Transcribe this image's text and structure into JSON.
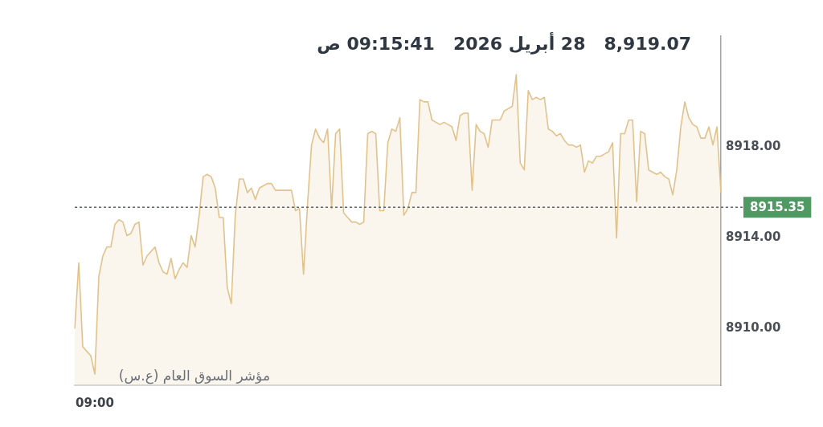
{
  "chart_data": {
    "type": "area",
    "title": "8,919.07   28 أبريل 2026   09:15:41 ص",
    "annotations": [
      "مؤشر السوق العام (ع.س)"
    ],
    "categories": [
      null,
      null,
      null,
      null,
      null,
      "09:00",
      null,
      null,
      null,
      null,
      null,
      null,
      null,
      null,
      null,
      null,
      null,
      null,
      null,
      null,
      null,
      null,
      null,
      null,
      null,
      null,
      null,
      null,
      null,
      null,
      null,
      null,
      null,
      null,
      null,
      null,
      null,
      null,
      null,
      null,
      null,
      null,
      null,
      null,
      null,
      null,
      null,
      null,
      null,
      null,
      null,
      null,
      null,
      null,
      null,
      null,
      null,
      null,
      null,
      null,
      null,
      null,
      null,
      null,
      null,
      null,
      null,
      null,
      null,
      null,
      null,
      null,
      null,
      null,
      null,
      null,
      null,
      null,
      null,
      null,
      null,
      null,
      null,
      null,
      null,
      null,
      null,
      null,
      null,
      null,
      null,
      null,
      null,
      null,
      null,
      null,
      null,
      null,
      null,
      null,
      null,
      null,
      null,
      null,
      null,
      null,
      null,
      null,
      null,
      null,
      null,
      null,
      null,
      null,
      null,
      null,
      null,
      null,
      null,
      null,
      null,
      null,
      null,
      null,
      null,
      null,
      null,
      null,
      null,
      null,
      null,
      null,
      null,
      null,
      null,
      null,
      null,
      null,
      null,
      null,
      null,
      null,
      null,
      null,
      null,
      null,
      null,
      null,
      null,
      null,
      null,
      null,
      null,
      null,
      null,
      null,
      null,
      null,
      null,
      null,
      null,
      null
    ],
    "values": [
      8910.0,
      8912.9,
      8909.2,
      8909.0,
      8908.8,
      8908.0,
      8912.3,
      8913.2,
      8913.6,
      8913.6,
      8914.6,
      8914.8,
      8914.7,
      8914.1,
      8914.2,
      8914.6,
      8914.7,
      8912.8,
      8913.2,
      8913.4,
      8913.6,
      8912.9,
      8912.5,
      8912.4,
      8913.1,
      8912.2,
      8912.6,
      8912.9,
      8912.7,
      8914.1,
      8913.6,
      8915.0,
      8916.7,
      8916.8,
      8916.7,
      8916.2,
      8914.9,
      8914.9,
      8911.8,
      8911.1,
      8915.0,
      8916.6,
      8916.6,
      8916.0,
      8916.2,
      8915.7,
      8916.2,
      8916.3,
      8916.4,
      8916.4,
      8916.1,
      8916.1,
      8916.1,
      8916.1,
      8916.1,
      8915.2,
      8915.3,
      8912.4,
      8915.5,
      8918.1,
      8918.8,
      8918.4,
      8918.2,
      8918.8,
      8915.3,
      8918.6,
      8918.8,
      8915.1,
      8914.9,
      8914.7,
      8914.7,
      8914.6,
      8914.7,
      8918.6,
      8918.7,
      8918.6,
      8915.2,
      8915.2,
      8918.2,
      8918.8,
      8918.7,
      8919.3,
      8915.0,
      8915.3,
      8916.0,
      8916.0,
      8920.1,
      8920.0,
      8920.0,
      8919.2,
      8919.1,
      8919.0,
      8919.1,
      8919.0,
      8918.9,
      8918.3,
      8919.4,
      8919.5,
      8919.5,
      8916.1,
      8919.0,
      8918.7,
      8918.6,
      8918.0,
      8919.2,
      8919.2,
      8919.2,
      8919.6,
      8919.7,
      8919.8,
      8921.2,
      8917.3,
      8917.0,
      8920.5,
      8920.1,
      8920.2,
      8920.1,
      8920.2,
      8918.8,
      8918.7,
      8918.5,
      8918.6,
      8918.3,
      8918.1,
      8918.1,
      8918.0,
      8918.1,
      8916.9,
      8917.4,
      8917.3,
      8917.6,
      8917.6,
      8917.7,
      8917.8,
      8918.2,
      8914.0,
      8918.6,
      8918.6,
      8919.2,
      8919.2,
      8915.6,
      8918.7,
      8918.6,
      8917.0,
      8916.9,
      8916.8,
      8916.9,
      8916.7,
      8916.6,
      8915.9,
      8917.0,
      8918.9,
      8920.0,
      8919.3,
      8919.0,
      8918.9,
      8918.4,
      8918.4,
      8918.9,
      8918.1,
      8918.9,
      8916.0
    ],
    "color": "#e2c28c",
    "ylim": [
      8907.5,
      8922.9
    ],
    "yticks": [
      {
        "value": 8910,
        "label": "8910.00"
      },
      {
        "value": 8914,
        "label": "8914.00"
      },
      {
        "value": 8918,
        "label": "8918.00"
      }
    ],
    "ref_lines": [
      {
        "axis": "y",
        "value": 8915.35,
        "label": "8915.35",
        "color": "#59636e",
        "line_style": "dotted"
      }
    ]
  }
}
